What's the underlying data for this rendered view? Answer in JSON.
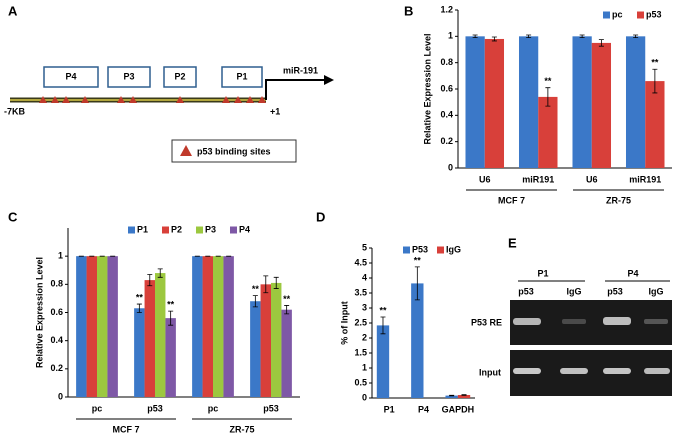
{
  "panel_labels": [
    "A",
    "B",
    "C",
    "D",
    "E"
  ],
  "diagram": {
    "start": "-7KB",
    "end": "+1",
    "gene": "miR-191",
    "promoters": [
      "P4",
      "P3",
      "P2",
      "P1"
    ],
    "legend": "p53 binding sites"
  },
  "chart_data": [
    {
      "type": "bar",
      "y_label": "Relative Expression Level",
      "categories": [
        "U6",
        "miR191",
        "U6",
        "miR191"
      ],
      "groups": [
        "MCF 7",
        "ZR-75"
      ],
      "ylim": [
        0,
        1.2
      ],
      "yticks": [
        0,
        0.2,
        0.4,
        0.6,
        0.8,
        1,
        1.2
      ],
      "series": [
        {
          "name": "pc",
          "color": "#3b78c8",
          "values": [
            1,
            1,
            1,
            1
          ],
          "errors": [
            0.01,
            0.01,
            0.01,
            0.01
          ],
          "significance": [
            null,
            null,
            null,
            null
          ]
        },
        {
          "name": "p53",
          "color": "#d8403a",
          "values": [
            0.98,
            0.54,
            0.95,
            0.66
          ],
          "errors": [
            0.015,
            0.07,
            0.025,
            0.09
          ],
          "significance": [
            null,
            "**",
            null,
            "**"
          ]
        }
      ]
    },
    {
      "type": "bar",
      "y_label": "Relative Expression Level",
      "categories": [
        "pc",
        "p53",
        "pc",
        "p53"
      ],
      "groups": [
        "MCF 7",
        "ZR-75"
      ],
      "ylim": [
        0,
        1.2
      ],
      "yticks": [
        0,
        0.2,
        0.4,
        0.6,
        0.8,
        1
      ],
      "series": [
        {
          "name": "P1",
          "color": "#3b78c8",
          "values": [
            1,
            0.63,
            1,
            0.68
          ],
          "errors": [
            0,
            0.03,
            0,
            0.04
          ],
          "significance": [
            null,
            "**",
            null,
            "**"
          ]
        },
        {
          "name": "P2",
          "color": "#d8403a",
          "values": [
            1,
            0.83,
            1,
            0.8
          ],
          "errors": [
            0,
            0.04,
            0,
            0.06
          ],
          "significance": [
            null,
            null,
            null,
            null
          ]
        },
        {
          "name": "P3",
          "color": "#9cc83f",
          "values": [
            1,
            0.88,
            1,
            0.81
          ],
          "errors": [
            0,
            0.03,
            0,
            0.04
          ],
          "significance": [
            null,
            null,
            null,
            null
          ]
        },
        {
          "name": "P4",
          "color": "#7e58a6",
          "values": [
            1,
            0.56,
            1,
            0.62
          ],
          "errors": [
            0,
            0.05,
            0,
            0.03
          ],
          "significance": [
            null,
            "**",
            null,
            "**"
          ]
        }
      ]
    },
    {
      "type": "bar",
      "y_label": "% of Input",
      "categories": [
        "P1",
        "P4",
        "GAPDH"
      ],
      "ylim": [
        0,
        5
      ],
      "yticks": [
        0,
        0.5,
        1,
        1.5,
        2,
        2.5,
        3,
        3.5,
        4,
        4.5,
        5
      ],
      "series": [
        {
          "name": "P53",
          "color": "#3b78c8",
          "values": [
            2.42,
            3.82,
            0.08
          ],
          "errors": [
            0.28,
            0.55,
            0.01
          ],
          "significance": [
            "**",
            "**",
            null
          ]
        },
        {
          "name": "IgG",
          "color": "#d8403a",
          "values": [
            0,
            0,
            0.1
          ],
          "errors": [
            0,
            0,
            0.01
          ],
          "significance": [
            null,
            null,
            null
          ]
        }
      ]
    }
  ],
  "gel": {
    "primers": [
      "P1",
      "P4"
    ],
    "lanes": [
      "p53",
      "IgG",
      "p53",
      "IgG"
    ],
    "rows": [
      "P53 RE",
      "Input"
    ]
  }
}
